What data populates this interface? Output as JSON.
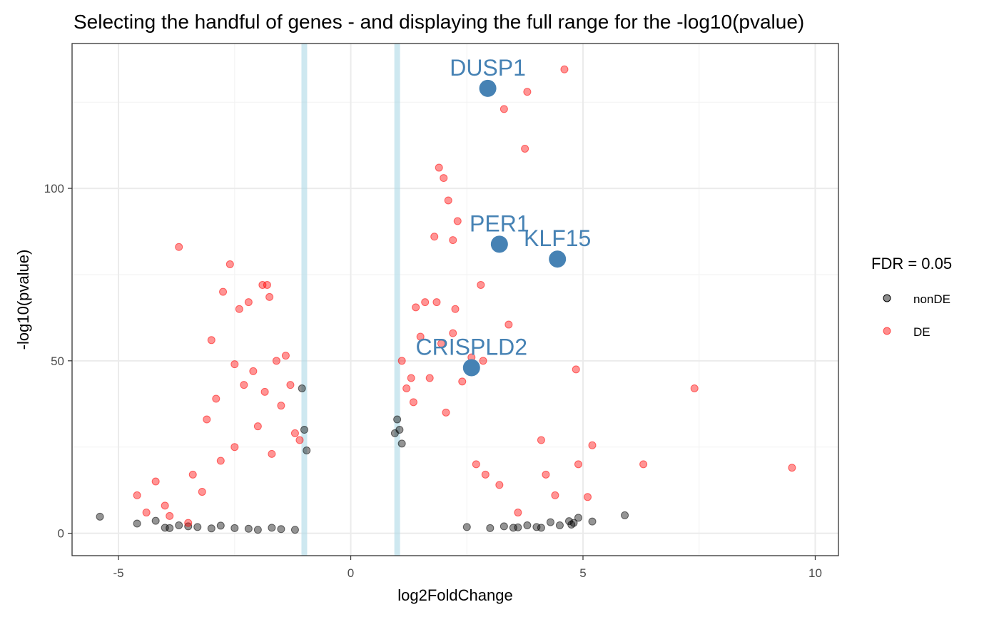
{
  "chart_data": {
    "type": "scatter",
    "title": "Selecting the handful of genes - and displaying the full range for the -log10(pvalue)",
    "xlabel": "log2FoldChange",
    "ylabel": "-log10(pvalue)",
    "xlim": [
      -6.0,
      10.5
    ],
    "ylim": [
      -6.5,
      142
    ],
    "x_ticks": [
      -5,
      0,
      5,
      10
    ],
    "x_tick_labels": [
      "-5",
      "0",
      "5",
      "10"
    ],
    "y_ticks": [
      0,
      50,
      100
    ],
    "y_tick_labels": [
      "0",
      "50",
      "100"
    ],
    "grid": true,
    "threshold_lines_x": [
      -1,
      1
    ],
    "threshold_line_color": "#add8e6",
    "legend": {
      "title": "FDR = 0.05",
      "position": "right",
      "entries": [
        {
          "label": "nonDE",
          "color": "#000000"
        },
        {
          "label": "DE",
          "color": "#ff0000"
        }
      ]
    },
    "series": [
      {
        "name": "nonDE",
        "color": "#000000",
        "x": [
          -5.4,
          -4.6,
          -4.2,
          -4.0,
          -3.9,
          -3.7,
          -3.5,
          -3.3,
          -3.0,
          -2.8,
          -2.5,
          -2.2,
          -2.0,
          -1.7,
          -1.5,
          -1.2,
          -1.05,
          -1.0,
          -0.95,
          0.95,
          1.0,
          1.05,
          1.1,
          2.5,
          3.0,
          3.3,
          3.5,
          3.6,
          3.8,
          4.0,
          4.1,
          4.3,
          4.5,
          4.7,
          4.75,
          4.8,
          4.9,
          5.2,
          5.9
        ],
        "y": [
          4.8,
          2.8,
          3.6,
          1.6,
          1.5,
          2.3,
          2.0,
          1.8,
          1.4,
          2.2,
          1.5,
          1.3,
          1.0,
          1.6,
          1.2,
          1.0,
          42.0,
          30.0,
          24.0,
          29.0,
          33.0,
          30.0,
          26.0,
          1.8,
          1.5,
          2.0,
          1.6,
          1.7,
          2.3,
          1.8,
          1.6,
          3.2,
          2.3,
          3.5,
          2.5,
          3.0,
          4.5,
          3.4,
          5.2
        ]
      },
      {
        "name": "DE",
        "color": "#ff0000",
        "x": [
          -4.6,
          -4.4,
          -4.2,
          -4.0,
          -3.9,
          -3.7,
          -3.5,
          -3.4,
          -3.2,
          -3.1,
          -3.0,
          -2.9,
          -2.8,
          -2.75,
          -2.6,
          -2.5,
          -2.5,
          -2.4,
          -2.3,
          -2.2,
          -2.1,
          -2.0,
          -1.9,
          -1.85,
          -1.8,
          -1.75,
          -1.7,
          -1.6,
          -1.5,
          -1.4,
          -1.3,
          -1.2,
          -1.1,
          1.1,
          1.2,
          1.3,
          1.35,
          1.4,
          1.5,
          1.6,
          1.7,
          1.8,
          1.85,
          1.9,
          1.95,
          2.0,
          2.05,
          2.1,
          2.2,
          2.2,
          2.25,
          2.3,
          2.4,
          2.6,
          2.7,
          2.8,
          2.85,
          2.9,
          3.2,
          3.3,
          3.4,
          3.6,
          3.75,
          3.8,
          4.1,
          4.2,
          4.4,
          4.6,
          4.85,
          4.9,
          5.1,
          5.2,
          6.3,
          7.4,
          9.5
        ],
        "y": [
          11.0,
          6.0,
          15.0,
          8.0,
          5.0,
          83.0,
          3.0,
          17.0,
          12.0,
          33.0,
          56.0,
          39.0,
          21.0,
          70.0,
          78.0,
          49.0,
          25.0,
          65.0,
          43.0,
          67.0,
          47.0,
          31.0,
          72.0,
          41.0,
          72.0,
          68.5,
          23.0,
          50.0,
          37.0,
          51.5,
          43.0,
          29.0,
          27.0,
          50.0,
          42.0,
          45.0,
          38.0,
          65.5,
          57.0,
          67.0,
          45.0,
          86.0,
          67.0,
          106.0,
          55.0,
          103.0,
          35.0,
          96.5,
          85.0,
          58.0,
          65.0,
          90.5,
          44.0,
          51.0,
          20.0,
          72.0,
          50.0,
          17.0,
          14.0,
          123.0,
          60.5,
          6.0,
          111.5,
          128.0,
          27.0,
          17.0,
          11.0,
          134.5,
          47.5,
          20.0,
          10.5,
          25.5,
          20.0,
          42.0,
          19.0
        ]
      }
    ],
    "highlighted_genes": [
      {
        "label": "DUSP1",
        "x": 2.95,
        "y": 129.0
      },
      {
        "label": "PER1",
        "x": 3.2,
        "y": 83.8
      },
      {
        "label": "KLF15",
        "x": 4.45,
        "y": 79.5
      },
      {
        "label": "CRISPLD2",
        "x": 2.6,
        "y": 48.0
      }
    ],
    "highlight_color": "#4682b4"
  }
}
